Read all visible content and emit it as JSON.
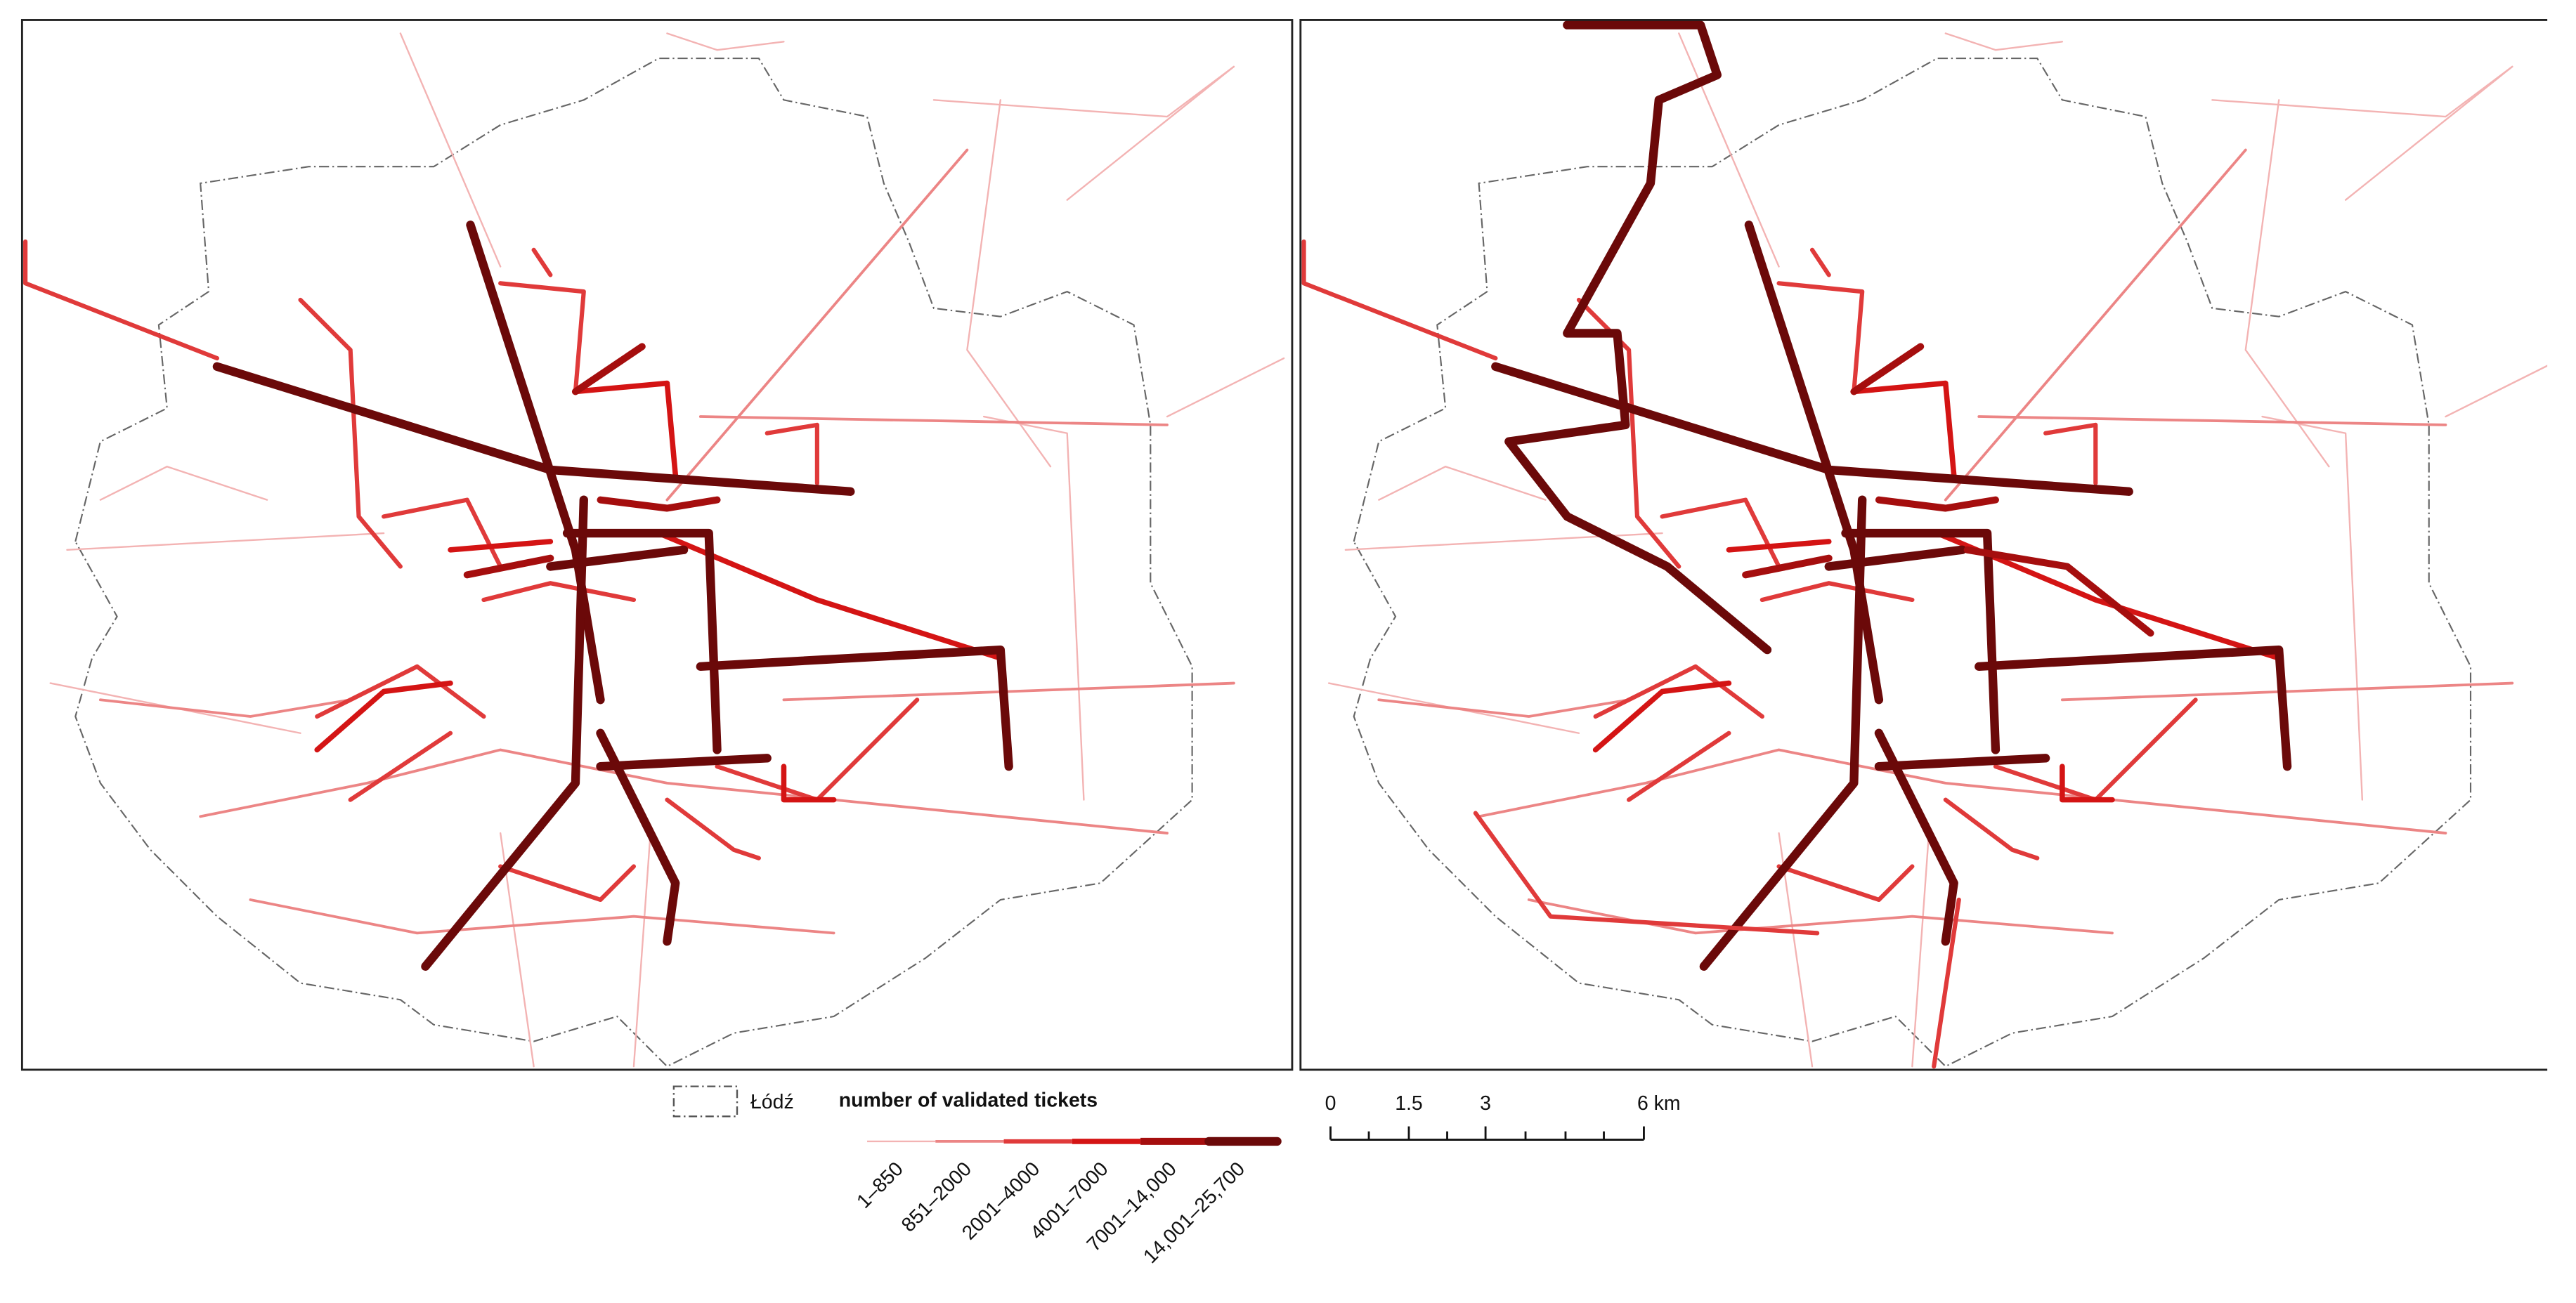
{
  "legend": {
    "boundary_label": "Łódź",
    "title": "number of validated tickets",
    "classes": [
      "1–850",
      "851–2000",
      "2001–4000",
      "4001–7000",
      "7001–14,000",
      "14,001–25,700"
    ]
  },
  "scale_bar": {
    "labels": [
      "0",
      "1.5",
      "3",
      "6 km"
    ]
  }
}
